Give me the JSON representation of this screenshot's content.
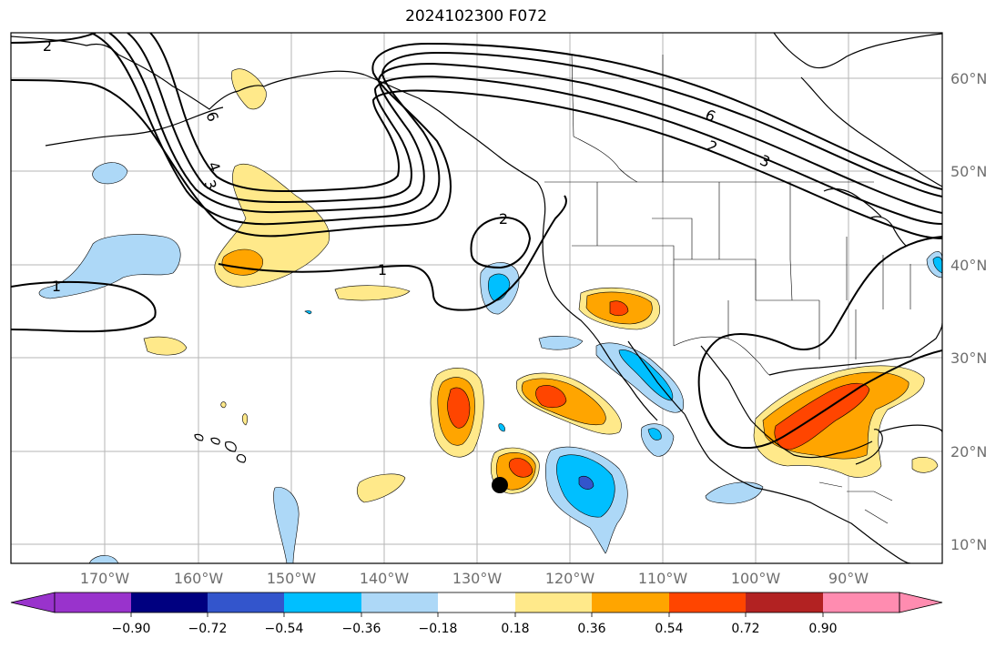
{
  "title": "2024102300 F072",
  "lat_labels": [
    "60°N",
    "50°N",
    "40°N",
    "30°N",
    "20°N",
    "10°N"
  ],
  "lon_labels": [
    "170°W",
    "160°W",
    "150°W",
    "140°W",
    "130°W",
    "120°W",
    "110°W",
    "100°W",
    "90°W"
  ],
  "colorbar": {
    "ticks": [
      "−0.90",
      "−0.72",
      "−0.54",
      "−0.36",
      "−0.18",
      "0.18",
      "0.36",
      "0.54",
      "0.72",
      "0.90"
    ],
    "colors": [
      "#9933cc",
      "#000080",
      "#3355cc",
      "#00bfff",
      "#add8f7",
      "#ffffff",
      "#ffe98a",
      "#ffa500",
      "#ff4500",
      "#b22222",
      "#ff8cb0"
    ]
  },
  "contour_labels": [
    "2",
    "1",
    "6",
    "3",
    "4",
    "1",
    "2",
    "6",
    "2",
    "3"
  ],
  "colors": {
    "land_border": "#000000",
    "grid": "#aaaaaa",
    "contour": "#000000"
  }
}
